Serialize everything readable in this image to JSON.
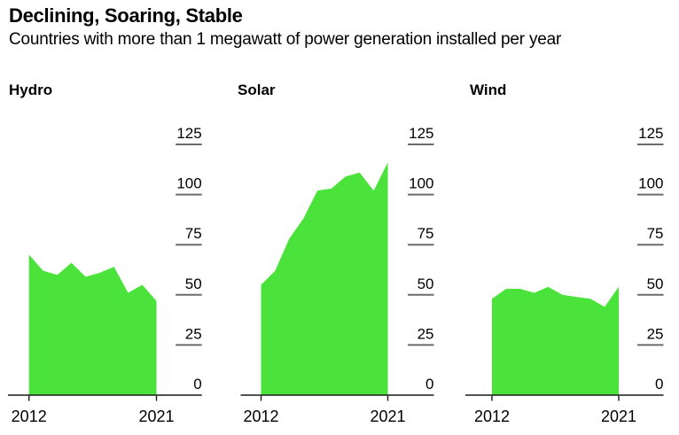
{
  "header": {
    "title": "Declining, Soaring, Stable",
    "subtitle": "Countries with more than 1 megawatt of power generation installed per year"
  },
  "chart_data": {
    "type": "area",
    "small_multiples": true,
    "x": [
      2012,
      2013,
      2014,
      2015,
      2016,
      2017,
      2018,
      2019,
      2020,
      2021
    ],
    "x_tick_labels": [
      "2012",
      "2021"
    ],
    "y_ticks": [
      0,
      25,
      50,
      75,
      100,
      125
    ],
    "ylim": [
      0,
      125
    ],
    "legend": "none",
    "grid": "right-side tick dashes only",
    "charts": [
      {
        "title": "Hydro",
        "values": [
          70,
          62,
          60,
          66,
          59,
          61,
          64,
          51,
          55,
          47
        ]
      },
      {
        "title": "Solar",
        "values": [
          55,
          62,
          78,
          88,
          102,
          103,
          109,
          111,
          102,
          116
        ]
      },
      {
        "title": "Wind",
        "values": [
          48,
          53,
          53,
          51,
          54,
          50,
          49,
          48,
          44,
          54
        ]
      }
    ],
    "colors": {
      "area_fill": "#4BE23B",
      "axis": "#1a1a1a",
      "tick_dash": "#6b6b6b",
      "text": "#000000",
      "background": "#ffffff"
    }
  }
}
